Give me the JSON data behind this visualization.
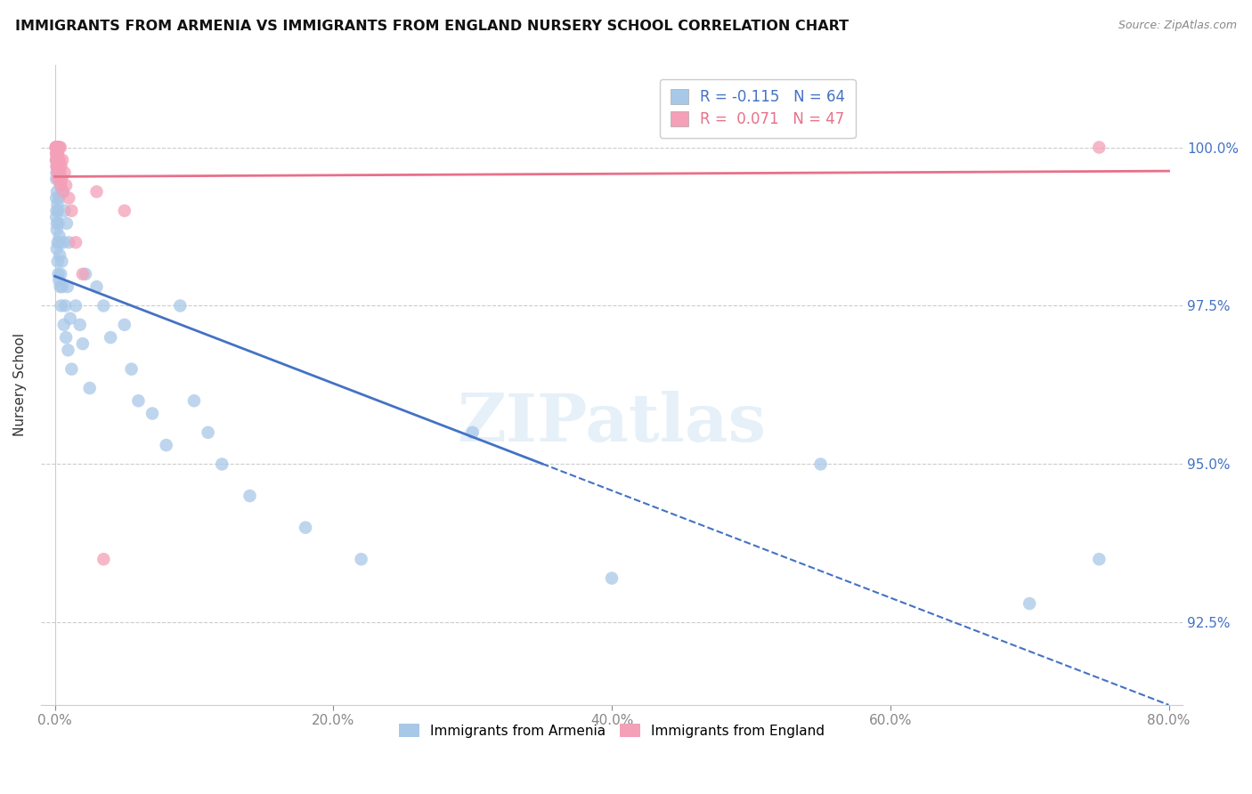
{
  "title": "IMMIGRANTS FROM ARMENIA VS IMMIGRANTS FROM ENGLAND NURSERY SCHOOL CORRELATION CHART",
  "source": "Source: ZipAtlas.com",
  "ylabel": "Nursery School",
  "yticks": [
    92.5,
    95.0,
    97.5,
    100.0
  ],
  "xticks": [
    0.0,
    20.0,
    40.0,
    60.0,
    80.0
  ],
  "xtick_labels": [
    "0.0%",
    "20.0%",
    "40.0%",
    "60.0%",
    "80.0%"
  ],
  "legend_r_armenia": "-0.115",
  "legend_n_armenia": "64",
  "legend_r_england": "0.071",
  "legend_n_england": "47",
  "armenia_color": "#a8c8e8",
  "england_color": "#f4a0b8",
  "trend_armenia_color": "#4472c4",
  "trend_england_color": "#e8708a",
  "watermark": "ZIPatlas",
  "arm_x": [
    0.08,
    0.1,
    0.1,
    0.1,
    0.12,
    0.12,
    0.14,
    0.14,
    0.15,
    0.15,
    0.18,
    0.2,
    0.2,
    0.22,
    0.25,
    0.25,
    0.28,
    0.3,
    0.3,
    0.32,
    0.35,
    0.38,
    0.4,
    0.42,
    0.45,
    0.5,
    0.52,
    0.55,
    0.6,
    0.65,
    0.7,
    0.75,
    0.8,
    0.85,
    0.9,
    0.95,
    1.0,
    1.1,
    1.2,
    1.5,
    1.8,
    2.0,
    2.2,
    2.5,
    3.0,
    3.5,
    4.0,
    5.0,
    5.5,
    6.0,
    7.0,
    8.0,
    9.0,
    10.0,
    11.0,
    12.0,
    14.0,
    18.0,
    22.0,
    30.0,
    40.0,
    55.0,
    70.0,
    75.0
  ],
  "arm_y": [
    99.8,
    99.5,
    99.2,
    98.9,
    99.6,
    99.0,
    98.7,
    98.4,
    99.3,
    98.8,
    99.1,
    98.5,
    98.2,
    99.0,
    98.8,
    98.0,
    99.2,
    98.5,
    97.9,
    98.6,
    98.3,
    97.8,
    99.4,
    98.0,
    97.5,
    98.2,
    97.8,
    99.3,
    98.5,
    97.2,
    99.0,
    97.5,
    97.0,
    98.8,
    97.8,
    96.8,
    98.5,
    97.3,
    96.5,
    97.5,
    97.2,
    96.9,
    98.0,
    96.2,
    97.8,
    97.5,
    97.0,
    97.2,
    96.5,
    96.0,
    95.8,
    95.3,
    97.5,
    96.0,
    95.5,
    95.0,
    94.5,
    94.0,
    93.5,
    95.5,
    93.2,
    95.0,
    92.8,
    93.5
  ],
  "eng_x": [
    0.06,
    0.08,
    0.09,
    0.1,
    0.1,
    0.11,
    0.12,
    0.12,
    0.13,
    0.14,
    0.15,
    0.15,
    0.16,
    0.17,
    0.18,
    0.18,
    0.19,
    0.2,
    0.2,
    0.21,
    0.22,
    0.22,
    0.23,
    0.25,
    0.26,
    0.28,
    0.3,
    0.32,
    0.33,
    0.35,
    0.38,
    0.4,
    0.42,
    0.45,
    0.5,
    0.55,
    0.6,
    0.7,
    0.8,
    1.0,
    1.2,
    1.5,
    2.0,
    3.0,
    3.5,
    75.0,
    5.0
  ],
  "eng_y": [
    100.0,
    100.0,
    99.9,
    100.0,
    99.8,
    100.0,
    99.9,
    99.7,
    100.0,
    99.8,
    100.0,
    99.7,
    100.0,
    99.9,
    100.0,
    99.6,
    99.8,
    100.0,
    99.7,
    100.0,
    99.9,
    99.5,
    100.0,
    99.8,
    99.6,
    100.0,
    99.7,
    100.0,
    99.5,
    99.8,
    99.6,
    100.0,
    99.4,
    99.7,
    99.5,
    99.8,
    99.3,
    99.6,
    99.4,
    99.2,
    99.0,
    98.5,
    98.0,
    99.3,
    93.5,
    100.0,
    99.0
  ]
}
